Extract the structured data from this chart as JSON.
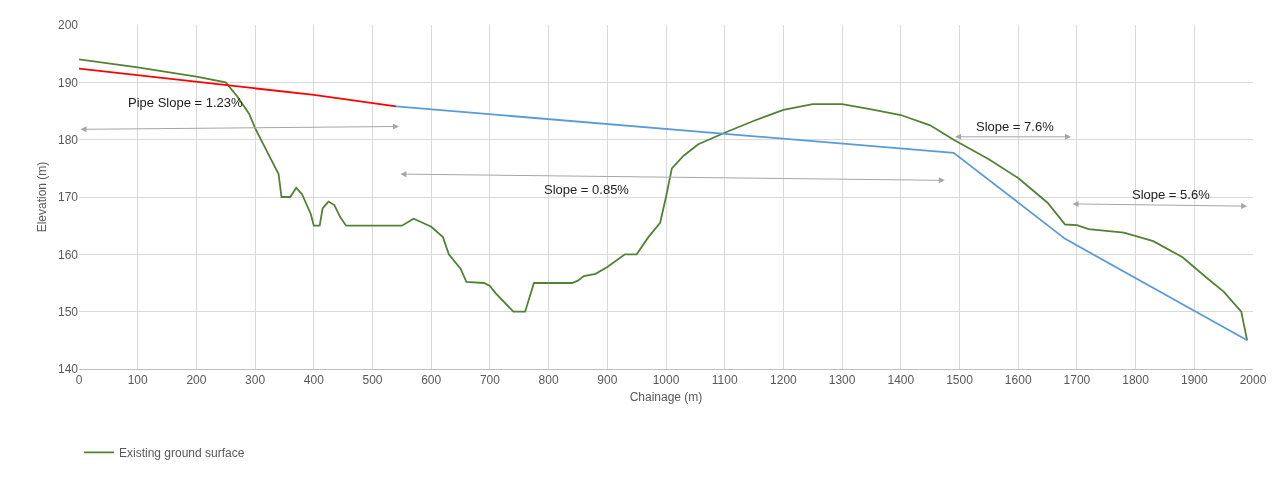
{
  "chart_data": {
    "type": "line",
    "xlabel": "Chainage (m)",
    "ylabel": "Elevation (m)",
    "xlim": [
      0,
      2000
    ],
    "xticks": [
      0,
      100,
      200,
      300,
      400,
      500,
      600,
      700,
      800,
      900,
      1000,
      1100,
      1200,
      1300,
      1400,
      1500,
      1600,
      1700,
      1800,
      1900,
      2000
    ],
    "ylim": [
      140,
      200
    ],
    "yticks": [
      140,
      150,
      160,
      170,
      180,
      190,
      200
    ],
    "grid": true,
    "legend": "bottom left",
    "marker": "none",
    "line_style": "solid",
    "series": [
      {
        "name": "Existing ground surface",
        "color": "#548235",
        "x": [
          0,
          100,
          200,
          250,
          270,
          290,
          300,
          330,
          340,
          345,
          360,
          370,
          380,
          395,
          400,
          410,
          415,
          425,
          435,
          445,
          455,
          500,
          550,
          570,
          590,
          600,
          620,
          630,
          650,
          660,
          690,
          700,
          710,
          740,
          760,
          775,
          840,
          850,
          860,
          880,
          900,
          930,
          950,
          970,
          990,
          1000,
          1010,
          1030,
          1055,
          1100,
          1150,
          1200,
          1250,
          1300,
          1350,
          1400,
          1450,
          1490,
          1550,
          1600,
          1650,
          1680,
          1700,
          1720,
          1780,
          1830,
          1880,
          1920,
          1950,
          1980,
          1990
        ],
        "values": [
          194,
          192.6,
          191,
          190,
          187.5,
          184.5,
          182,
          176,
          174,
          170,
          170,
          171.6,
          170.5,
          167,
          165,
          165,
          168,
          169.2,
          168.6,
          166.5,
          165,
          165,
          165,
          166.2,
          165.3,
          164.8,
          163,
          160,
          157.5,
          155.2,
          155,
          154.5,
          153.2,
          150,
          150,
          155,
          155,
          155.4,
          156.2,
          156.6,
          157.8,
          160,
          160,
          163,
          165.5,
          170,
          175,
          177.2,
          179.2,
          181.2,
          183.3,
          185.2,
          186.2,
          186.2,
          185.3,
          184.3,
          182.5,
          180,
          176.6,
          173.3,
          169,
          165.2,
          165.1,
          164.4,
          163.8,
          162.3,
          159.5,
          156,
          153.5,
          150,
          145
        ]
      },
      {
        "color": "#ff0000",
        "x": [
          0,
          400,
          540
        ],
        "values": [
          192.4,
          187.8,
          185.8
        ]
      },
      {
        "color": "#5b9bd5",
        "x": [
          540,
          1490,
          1680,
          1990
        ],
        "values": [
          185.8,
          177.7,
          162.7,
          145
        ]
      }
    ],
    "annotations": [
      "Pipe Slope = 1.23%",
      "Slope = 0.85%",
      "Slope = 7.6%",
      "Slope = 5.6%"
    ]
  }
}
